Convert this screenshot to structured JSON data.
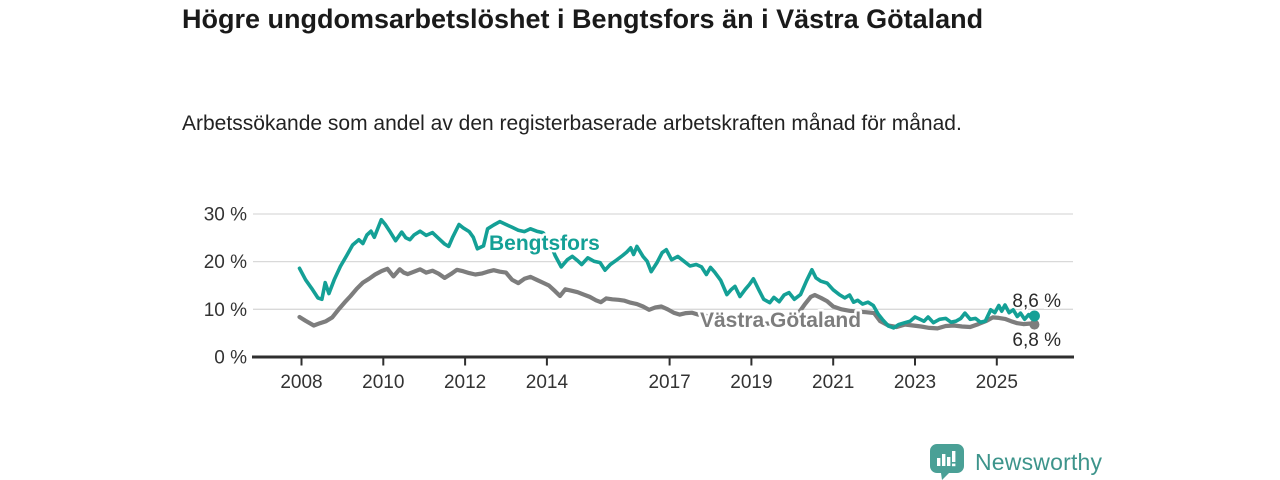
{
  "header": {
    "title": "Högre ungdomsarbetslöshet i Bengtsfors än i Västra Götaland",
    "subtitle": "Arbetssökande som andel av den registerbaserade arbetskraften månad för månad."
  },
  "colors": {
    "bengtsfors_teal": "#14a096",
    "vastra_gray": "#7d7d7d",
    "axis_dark": "#2f2f2f",
    "grid_light": "#d9d9d9",
    "tick_label": "#333333",
    "value_label": "#2a2a2a",
    "brand_teal": "#3d948b",
    "brand_icon_teal": "#4aa096"
  },
  "chart_data": {
    "type": "line",
    "title": "Högre ungdomsarbetslöshet i Bengtsfors än i Västra Götaland",
    "subtitle": "Arbetssökande som andel av den registerbaserade arbetskraften månad för månad.",
    "xlabel": "",
    "ylabel": "",
    "y_unit": "%",
    "ylim": [
      0,
      30
    ],
    "xlim": [
      2007.8,
      2026.3
    ],
    "grid": true,
    "legend_position": "inline-labels",
    "y_ticks": [
      {
        "value": 0,
        "label": "0 %"
      },
      {
        "value": 10,
        "label": "10 %"
      },
      {
        "value": 20,
        "label": "20 %"
      },
      {
        "value": 30,
        "label": "30 %"
      }
    ],
    "x_ticks": [
      {
        "value": 2008,
        "label": "2008"
      },
      {
        "value": 2010,
        "label": "2010"
      },
      {
        "value": 2012,
        "label": "2012"
      },
      {
        "value": 2014,
        "label": "2014"
      },
      {
        "value": 2017,
        "label": "2017"
      },
      {
        "value": 2019,
        "label": "2019"
      },
      {
        "value": 2021,
        "label": "2021"
      },
      {
        "value": 2023,
        "label": "2023"
      },
      {
        "value": 2025,
        "label": "2025"
      }
    ],
    "series": [
      {
        "name": "Västra Götaland",
        "color": "#7d7d7d",
        "end_label": "6,8 %",
        "end_value": 6.8,
        "points": [
          [
            2007.95,
            8.4
          ],
          [
            2008.1,
            7.6
          ],
          [
            2008.3,
            6.6
          ],
          [
            2008.45,
            7.1
          ],
          [
            2008.6,
            7.5
          ],
          [
            2008.75,
            8.3
          ],
          [
            2008.9,
            9.9
          ],
          [
            2009.05,
            11.4
          ],
          [
            2009.2,
            12.8
          ],
          [
            2009.35,
            14.3
          ],
          [
            2009.5,
            15.6
          ],
          [
            2009.65,
            16.4
          ],
          [
            2009.8,
            17.3
          ],
          [
            2009.95,
            18.0
          ],
          [
            2010.1,
            18.5
          ],
          [
            2010.25,
            16.9
          ],
          [
            2010.4,
            18.4
          ],
          [
            2010.5,
            17.7
          ],
          [
            2010.6,
            17.4
          ],
          [
            2010.75,
            17.9
          ],
          [
            2010.9,
            18.4
          ],
          [
            2011.05,
            17.7
          ],
          [
            2011.2,
            18.1
          ],
          [
            2011.35,
            17.5
          ],
          [
            2011.5,
            16.6
          ],
          [
            2011.65,
            17.4
          ],
          [
            2011.8,
            18.3
          ],
          [
            2011.95,
            18.0
          ],
          [
            2012.1,
            17.6
          ],
          [
            2012.25,
            17.3
          ],
          [
            2012.4,
            17.5
          ],
          [
            2012.55,
            17.9
          ],
          [
            2012.7,
            18.2
          ],
          [
            2012.85,
            17.9
          ],
          [
            2013.0,
            17.7
          ],
          [
            2013.15,
            16.2
          ],
          [
            2013.3,
            15.5
          ],
          [
            2013.45,
            16.4
          ],
          [
            2013.6,
            16.8
          ],
          [
            2013.75,
            16.2
          ],
          [
            2013.9,
            15.6
          ],
          [
            2014.05,
            15.0
          ],
          [
            2014.2,
            13.8
          ],
          [
            2014.32,
            12.8
          ],
          [
            2014.45,
            14.2
          ],
          [
            2014.6,
            13.9
          ],
          [
            2014.75,
            13.6
          ],
          [
            2014.9,
            13.1
          ],
          [
            2015.05,
            12.6
          ],
          [
            2015.2,
            11.9
          ],
          [
            2015.32,
            11.5
          ],
          [
            2015.45,
            12.3
          ],
          [
            2015.6,
            12.1
          ],
          [
            2015.75,
            12.0
          ],
          [
            2015.9,
            11.8
          ],
          [
            2016.05,
            11.4
          ],
          [
            2016.2,
            11.1
          ],
          [
            2016.35,
            10.6
          ],
          [
            2016.5,
            9.9
          ],
          [
            2016.65,
            10.4
          ],
          [
            2016.8,
            10.6
          ],
          [
            2016.95,
            10.0
          ],
          [
            2017.1,
            9.3
          ],
          [
            2017.25,
            8.9
          ],
          [
            2017.4,
            9.2
          ],
          [
            2017.55,
            9.3
          ],
          [
            2017.7,
            8.9
          ],
          [
            2017.9,
            8.6
          ],
          [
            2018.1,
            8.3
          ],
          [
            2018.35,
            7.9
          ],
          [
            2018.6,
            7.7
          ],
          [
            2018.85,
            7.8
          ],
          [
            2019.1,
            7.4
          ],
          [
            2019.35,
            7.0
          ],
          [
            2019.6,
            7.1
          ],
          [
            2019.85,
            7.5
          ],
          [
            2020.1,
            8.6
          ],
          [
            2020.3,
            11.0
          ],
          [
            2020.45,
            12.6
          ],
          [
            2020.55,
            13.0
          ],
          [
            2020.7,
            12.4
          ],
          [
            2020.85,
            11.7
          ],
          [
            2021.0,
            10.6
          ],
          [
            2021.2,
            10.0
          ],
          [
            2021.4,
            9.7
          ],
          [
            2021.6,
            9.5
          ],
          [
            2021.8,
            9.4
          ],
          [
            2022.0,
            9.2
          ],
          [
            2022.15,
            7.5
          ],
          [
            2022.35,
            6.6
          ],
          [
            2022.55,
            6.3
          ],
          [
            2022.75,
            6.8
          ],
          [
            2022.95,
            6.6
          ],
          [
            2023.15,
            6.4
          ],
          [
            2023.35,
            6.1
          ],
          [
            2023.55,
            6.0
          ],
          [
            2023.75,
            6.5
          ],
          [
            2023.95,
            6.6
          ],
          [
            2024.15,
            6.4
          ],
          [
            2024.35,
            6.3
          ],
          [
            2024.55,
            6.9
          ],
          [
            2024.75,
            7.6
          ],
          [
            2024.9,
            8.3
          ],
          [
            2025.05,
            8.2
          ],
          [
            2025.2,
            8.0
          ],
          [
            2025.35,
            7.5
          ],
          [
            2025.5,
            7.1
          ],
          [
            2025.65,
            6.9
          ],
          [
            2025.8,
            7.0
          ],
          [
            2025.92,
            6.8
          ]
        ]
      },
      {
        "name": "Bengtsfors",
        "color": "#14a096",
        "end_label": "8,6 %",
        "end_value": 8.6,
        "points": [
          [
            2007.95,
            18.6
          ],
          [
            2008.1,
            16.2
          ],
          [
            2008.25,
            14.4
          ],
          [
            2008.4,
            12.4
          ],
          [
            2008.5,
            12.1
          ],
          [
            2008.58,
            15.6
          ],
          [
            2008.67,
            13.3
          ],
          [
            2008.8,
            16.2
          ],
          [
            2008.95,
            19.0
          ],
          [
            2009.1,
            21.2
          ],
          [
            2009.25,
            23.5
          ],
          [
            2009.4,
            24.6
          ],
          [
            2009.5,
            23.8
          ],
          [
            2009.6,
            25.6
          ],
          [
            2009.7,
            26.4
          ],
          [
            2009.78,
            25.1
          ],
          [
            2009.95,
            28.8
          ],
          [
            2010.05,
            27.8
          ],
          [
            2010.15,
            26.5
          ],
          [
            2010.3,
            24.4
          ],
          [
            2010.45,
            26.2
          ],
          [
            2010.55,
            25.0
          ],
          [
            2010.65,
            24.6
          ],
          [
            2010.75,
            25.6
          ],
          [
            2010.9,
            26.4
          ],
          [
            2011.05,
            25.5
          ],
          [
            2011.2,
            26.1
          ],
          [
            2011.35,
            24.9
          ],
          [
            2011.5,
            23.7
          ],
          [
            2011.6,
            23.2
          ],
          [
            2011.7,
            25.2
          ],
          [
            2011.85,
            27.8
          ],
          [
            2011.95,
            27.1
          ],
          [
            2012.1,
            26.3
          ],
          [
            2012.2,
            25.1
          ],
          [
            2012.3,
            22.7
          ],
          [
            2012.45,
            23.3
          ],
          [
            2012.55,
            26.9
          ],
          [
            2012.7,
            27.7
          ],
          [
            2012.85,
            28.4
          ],
          [
            2013.0,
            27.8
          ],
          [
            2013.15,
            27.2
          ],
          [
            2013.3,
            26.6
          ],
          [
            2013.45,
            26.3
          ],
          [
            2013.6,
            26.9
          ],
          [
            2013.75,
            26.4
          ],
          [
            2013.9,
            26.1
          ],
          [
            2014.05,
            24.6
          ],
          [
            2014.2,
            21.3
          ],
          [
            2014.35,
            18.9
          ],
          [
            2014.5,
            20.4
          ],
          [
            2014.62,
            21.1
          ],
          [
            2014.75,
            20.2
          ],
          [
            2014.85,
            19.4
          ],
          [
            2015.0,
            20.8
          ],
          [
            2015.15,
            20.1
          ],
          [
            2015.3,
            19.8
          ],
          [
            2015.42,
            18.2
          ],
          [
            2015.55,
            19.4
          ],
          [
            2015.7,
            20.3
          ],
          [
            2015.85,
            21.3
          ],
          [
            2015.95,
            22.0
          ],
          [
            2016.05,
            22.9
          ],
          [
            2016.12,
            21.5
          ],
          [
            2016.2,
            23.2
          ],
          [
            2016.35,
            21.1
          ],
          [
            2016.45,
            20.1
          ],
          [
            2016.55,
            17.9
          ],
          [
            2016.7,
            19.9
          ],
          [
            2016.82,
            21.9
          ],
          [
            2016.92,
            22.5
          ],
          [
            2017.05,
            20.4
          ],
          [
            2017.2,
            21.1
          ],
          [
            2017.35,
            20.1
          ],
          [
            2017.5,
            19.1
          ],
          [
            2017.65,
            19.4
          ],
          [
            2017.78,
            18.9
          ],
          [
            2017.9,
            17.3
          ],
          [
            2018.0,
            18.8
          ],
          [
            2018.1,
            17.8
          ],
          [
            2018.25,
            16.1
          ],
          [
            2018.4,
            13.1
          ],
          [
            2018.5,
            14.1
          ],
          [
            2018.6,
            14.8
          ],
          [
            2018.72,
            12.7
          ],
          [
            2018.85,
            14.2
          ],
          [
            2018.95,
            15.2
          ],
          [
            2019.05,
            16.4
          ],
          [
            2019.18,
            14.1
          ],
          [
            2019.3,
            12.1
          ],
          [
            2019.45,
            11.4
          ],
          [
            2019.55,
            12.5
          ],
          [
            2019.68,
            11.6
          ],
          [
            2019.8,
            13.0
          ],
          [
            2019.92,
            13.5
          ],
          [
            2020.05,
            12.1
          ],
          [
            2020.2,
            13.1
          ],
          [
            2020.35,
            16.0
          ],
          [
            2020.48,
            18.3
          ],
          [
            2020.58,
            16.6
          ],
          [
            2020.7,
            15.9
          ],
          [
            2020.85,
            15.5
          ],
          [
            2021.0,
            14.1
          ],
          [
            2021.15,
            13.1
          ],
          [
            2021.28,
            12.4
          ],
          [
            2021.4,
            13.0
          ],
          [
            2021.5,
            11.5
          ],
          [
            2021.6,
            11.9
          ],
          [
            2021.72,
            11.1
          ],
          [
            2021.85,
            11.5
          ],
          [
            2021.98,
            10.8
          ],
          [
            2022.1,
            9.0
          ],
          [
            2022.2,
            7.9
          ],
          [
            2022.35,
            6.5
          ],
          [
            2022.48,
            6.1
          ],
          [
            2022.6,
            6.8
          ],
          [
            2022.75,
            7.2
          ],
          [
            2022.88,
            7.5
          ],
          [
            2023.0,
            8.4
          ],
          [
            2023.12,
            7.9
          ],
          [
            2023.22,
            7.5
          ],
          [
            2023.32,
            8.4
          ],
          [
            2023.45,
            7.2
          ],
          [
            2023.6,
            7.9
          ],
          [
            2023.75,
            8.1
          ],
          [
            2023.88,
            7.3
          ],
          [
            2024.0,
            7.5
          ],
          [
            2024.12,
            8.1
          ],
          [
            2024.22,
            9.2
          ],
          [
            2024.35,
            7.9
          ],
          [
            2024.48,
            8.1
          ],
          [
            2024.6,
            7.3
          ],
          [
            2024.72,
            7.5
          ],
          [
            2024.85,
            9.9
          ],
          [
            2024.95,
            9.3
          ],
          [
            2025.05,
            10.8
          ],
          [
            2025.12,
            9.6
          ],
          [
            2025.2,
            10.9
          ],
          [
            2025.3,
            9.3
          ],
          [
            2025.4,
            9.9
          ],
          [
            2025.5,
            8.5
          ],
          [
            2025.58,
            9.2
          ],
          [
            2025.68,
            7.9
          ],
          [
            2025.78,
            8.9
          ],
          [
            2025.85,
            8.2
          ],
          [
            2025.92,
            8.6
          ]
        ]
      }
    ]
  },
  "footer": {
    "brand": "Newsworthy"
  }
}
